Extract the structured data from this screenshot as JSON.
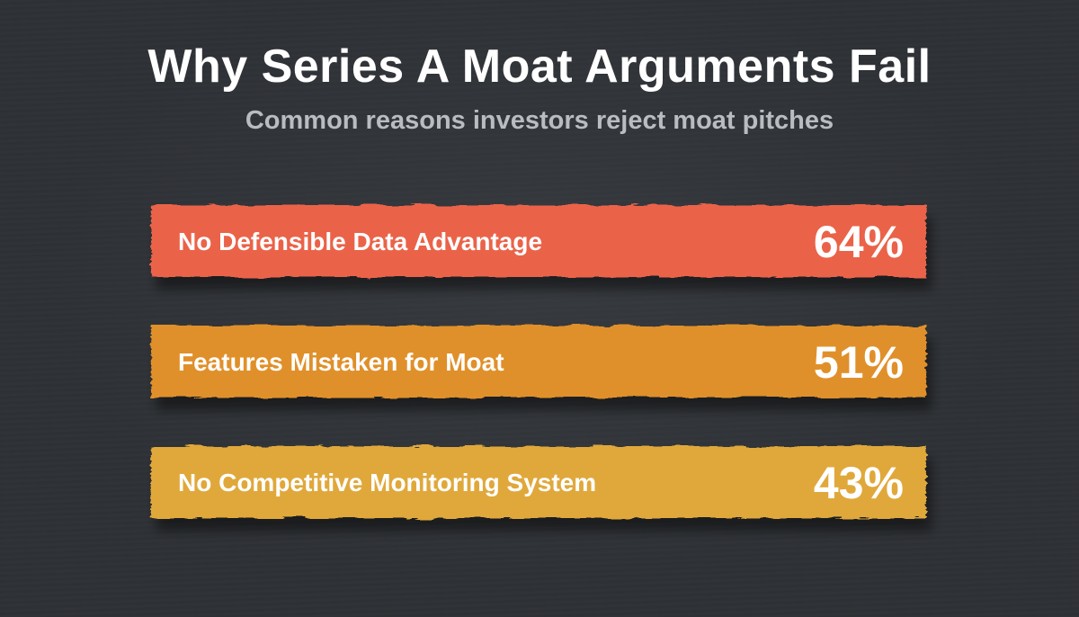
{
  "chart_data": {
    "type": "bar",
    "orientation": "horizontal",
    "title": "Why Series A Moat Arguments Fail",
    "subtitle": "Common reasons investors reject moat pitches",
    "categories": [
      "No Defensible Data Advantage",
      "Features Mistaken for Moat",
      "No Competitive Monitoring System"
    ],
    "values": [
      64,
      51,
      43
    ],
    "value_labels": [
      "64%",
      "51%",
      "43%"
    ],
    "unit": "%",
    "bar_colors": [
      "#ea6448",
      "#e0902b",
      "#e0a83a"
    ],
    "grid": false,
    "legend": "none"
  },
  "colors": {
    "background": "#2e3135",
    "title": "#ffffff",
    "subtitle": "#b9bcc0"
  }
}
